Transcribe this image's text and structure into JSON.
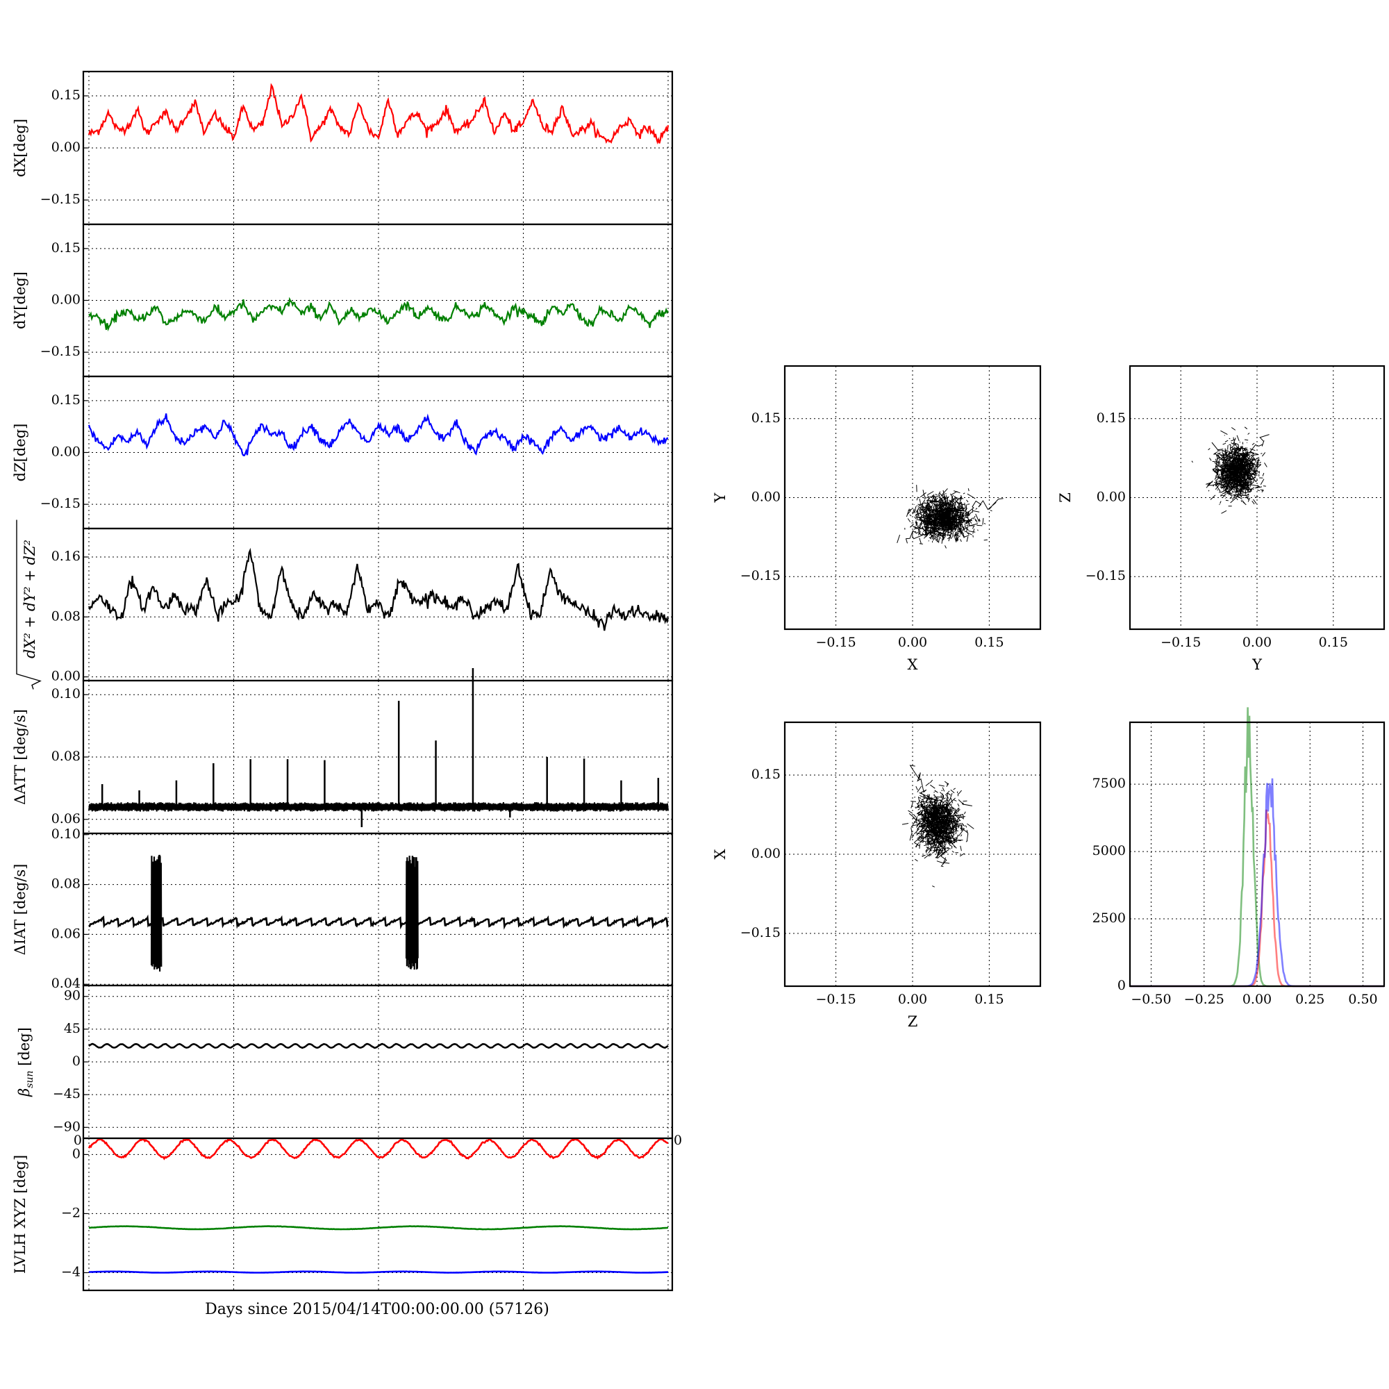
{
  "figure": {
    "x_axis_label": "Days since 2015/04/14T00:00:00.00 (57126)"
  },
  "chart_data": [
    {
      "id": "dx",
      "type": "line",
      "ylabel": "dX[deg]",
      "ylim": [
        -0.22,
        0.22
      ],
      "yticks": [
        -0.15,
        0.0,
        0.15
      ],
      "ytick_labels": [
        "−0.15",
        "0.00",
        "0.15"
      ],
      "grid": true,
      "series": [
        {
          "color": "#ff0000",
          "values": [
            0.04,
            0.05,
            0.1,
            0.05,
            0.06,
            0.11,
            0.04,
            0.08,
            0.1,
            0.05,
            0.09,
            0.13,
            0.04,
            0.1,
            0.06,
            0.03,
            0.12,
            0.05,
            0.07,
            0.18,
            0.06,
            0.09,
            0.15,
            0.03,
            0.06,
            0.11,
            0.06,
            0.04,
            0.13,
            0.05,
            0.03,
            0.14,
            0.04,
            0.08,
            0.1,
            0.05,
            0.07,
            0.11,
            0.05,
            0.06,
            0.09,
            0.14,
            0.04,
            0.1,
            0.05,
            0.07,
            0.14,
            0.06,
            0.05,
            0.12,
            0.04,
            0.05,
            0.07,
            0.03,
            0.02,
            0.06,
            0.08,
            0.04,
            0.06,
            0.02,
            0.06
          ]
        }
      ]
    },
    {
      "id": "dy",
      "type": "line",
      "ylabel": "dY[deg]",
      "ylim": [
        -0.22,
        0.22
      ],
      "yticks": [
        -0.15,
        0.0,
        0.15
      ],
      "ytick_labels": [
        "−0.15",
        "0.00",
        "0.15"
      ],
      "grid": true,
      "series": [
        {
          "color": "#008000",
          "values": [
            -0.04,
            -0.05,
            -0.08,
            -0.04,
            -0.03,
            -0.06,
            -0.04,
            -0.02,
            -0.07,
            -0.05,
            -0.03,
            -0.04,
            -0.06,
            -0.02,
            -0.05,
            -0.03,
            -0.01,
            -0.06,
            -0.03,
            -0.02,
            -0.03,
            0.0,
            -0.04,
            -0.02,
            -0.05,
            -0.01,
            -0.07,
            -0.03,
            -0.05,
            -0.02,
            -0.04,
            -0.06,
            -0.03,
            -0.01,
            -0.05,
            -0.02,
            -0.04,
            -0.06,
            -0.02,
            -0.03,
            -0.05,
            -0.01,
            -0.04,
            -0.06,
            -0.02,
            -0.03,
            -0.05,
            -0.07,
            -0.02,
            -0.04,
            -0.01,
            -0.05,
            -0.07,
            -0.03,
            -0.04,
            -0.06,
            -0.02,
            -0.04,
            -0.07,
            -0.04,
            -0.03
          ]
        }
      ]
    },
    {
      "id": "dz",
      "type": "line",
      "ylabel": "dZ[deg]",
      "ylim": [
        -0.22,
        0.22
      ],
      "yticks": [
        -0.15,
        0.0,
        0.15
      ],
      "ytick_labels": [
        "−0.15",
        "0.00",
        "0.15"
      ],
      "grid": true,
      "series": [
        {
          "color": "#0000ff",
          "values": [
            0.07,
            0.03,
            0.01,
            0.05,
            0.03,
            0.06,
            0.02,
            0.08,
            0.1,
            0.04,
            0.03,
            0.06,
            0.08,
            0.04,
            0.09,
            0.05,
            -0.01,
            0.04,
            0.08,
            0.05,
            0.06,
            0.01,
            0.05,
            0.08,
            0.04,
            0.02,
            0.06,
            0.09,
            0.05,
            0.03,
            0.08,
            0.05,
            0.07,
            0.03,
            0.06,
            0.1,
            0.05,
            0.04,
            0.09,
            0.03,
            0.0,
            0.05,
            0.06,
            0.04,
            0.01,
            0.05,
            0.03,
            0.0,
            0.05,
            0.07,
            0.03,
            0.06,
            0.08,
            0.04,
            0.05,
            0.07,
            0.04,
            0.06,
            0.05,
            0.03,
            0.04
          ]
        }
      ]
    },
    {
      "id": "dr",
      "type": "line",
      "ylabel_math": true,
      "ylim": [
        -0.005,
        0.198
      ],
      "yticks": [
        0.0,
        0.08,
        0.16
      ],
      "ytick_labels": [
        "0.00",
        "0.08",
        "0.16"
      ],
      "grid": true,
      "series": [
        {
          "color": "#000000",
          "values": [
            0.09,
            0.11,
            0.09,
            0.08,
            0.13,
            0.09,
            0.12,
            0.09,
            0.11,
            0.09,
            0.09,
            0.13,
            0.08,
            0.1,
            0.1,
            0.17,
            0.09,
            0.08,
            0.15,
            0.09,
            0.08,
            0.11,
            0.09,
            0.1,
            0.08,
            0.15,
            0.09,
            0.1,
            0.08,
            0.13,
            0.11,
            0.1,
            0.11,
            0.1,
            0.09,
            0.11,
            0.08,
            0.09,
            0.1,
            0.09,
            0.15,
            0.09,
            0.08,
            0.14,
            0.11,
            0.1,
            0.09,
            0.08,
            0.07,
            0.09,
            0.08,
            0.09,
            0.08,
            0.08,
            0.08
          ]
        }
      ]
    },
    {
      "id": "datt",
      "type": "line",
      "ylabel": "ΔATT [deg/s]",
      "ylim": [
        0.0555,
        0.1045
      ],
      "yticks": [
        0.06,
        0.08,
        0.1
      ],
      "ytick_labels": [
        "0.06",
        "0.08",
        "0.10"
      ],
      "grid": true,
      "baseline": 0.064,
      "band": 0.0015,
      "spikes": [
        {
          "x": 0.023,
          "v": 0.0713
        },
        {
          "x": 0.087,
          "v": 0.0693
        },
        {
          "x": 0.151,
          "v": 0.0725
        },
        {
          "x": 0.215,
          "v": 0.078
        },
        {
          "x": 0.279,
          "v": 0.0793
        },
        {
          "x": 0.343,
          "v": 0.0793
        },
        {
          "x": 0.407,
          "v": 0.079
        },
        {
          "x": 0.471,
          "v": 0.0575
        },
        {
          "x": 0.535,
          "v": 0.098
        },
        {
          "x": 0.599,
          "v": 0.0853
        },
        {
          "x": 0.663,
          "v": 0.1085
        },
        {
          "x": 0.727,
          "v": 0.0606
        },
        {
          "x": 0.791,
          "v": 0.08
        },
        {
          "x": 0.855,
          "v": 0.0795
        },
        {
          "x": 0.919,
          "v": 0.0725
        },
        {
          "x": 0.983,
          "v": 0.0733
        }
      ]
    },
    {
      "id": "diat",
      "type": "line",
      "ylabel": "ΔIAT [deg/s]",
      "ylim": [
        0.0395,
        0.1005
      ],
      "yticks": [
        0.04,
        0.06,
        0.08,
        0.1
      ],
      "ytick_labels": [
        "0.04",
        "0.06",
        "0.08",
        "0.10"
      ],
      "grid": true,
      "sawtooth": {
        "low": 0.0635,
        "high": 0.0665,
        "period": 0.0256
      },
      "bursts": [
        {
          "x0": 0.108,
          "x1": 0.125,
          "low": 0.045,
          "high": 0.092
        },
        {
          "x0": 0.548,
          "x1": 0.568,
          "low": 0.045,
          "high": 0.092
        }
      ]
    },
    {
      "id": "beta",
      "type": "line",
      "ylabel_math": true,
      "ylim": [
        -105,
        105
      ],
      "yticks": [
        -90,
        -45,
        0,
        45,
        90
      ],
      "ytick_labels": [
        "−90",
        "−45",
        "0",
        "45",
        "90"
      ],
      "grid": true,
      "series": [
        {
          "color": "#000000",
          "mean": 22,
          "amplitude": 2.5,
          "cycles": 40
        }
      ]
    },
    {
      "id": "lvlh",
      "type": "line",
      "ylabel": "LVLH XYZ [deg]",
      "ylim": [
        -4.6,
        0.55
      ],
      "yticks": [
        -4,
        -2,
        0
      ],
      "ytick_labels": [
        "−4",
        "−2",
        "0"
      ],
      "grid": true,
      "corner_labels": [
        "0",
        "0"
      ],
      "series": [
        {
          "color": "#ff0000",
          "mean": 0.2,
          "amplitude": 0.3,
          "cycles": 13.4
        },
        {
          "color": "#008000",
          "mean": -2.48,
          "amplitude": 0.05,
          "cycles": 4
        },
        {
          "color": "#0000ff",
          "mean": -3.98,
          "amplitude": 0.02,
          "cycles": 6
        }
      ]
    },
    {
      "id": "xy",
      "type": "scatter",
      "xlabel": "X",
      "ylabel": "Y",
      "xlim": [
        -0.25,
        0.25
      ],
      "ylim": [
        -0.25,
        0.25
      ],
      "ticks": [
        -0.15,
        0.0,
        0.15
      ],
      "tick_labels": [
        "−0.15",
        "0.00",
        "0.15"
      ],
      "grid": true,
      "cloud": {
        "cx": 0.06,
        "cy": -0.04,
        "sx": 0.025,
        "sy": 0.018,
        "tails": [
          [
            0.17,
            0.0
          ],
          [
            -0.02,
            -0.08
          ]
        ]
      }
    },
    {
      "id": "yz",
      "type": "scatter",
      "xlabel": "Y",
      "ylabel": "Z",
      "xlim": [
        -0.25,
        0.25
      ],
      "ylim": [
        -0.25,
        0.25
      ],
      "ticks": [
        -0.15,
        0.0,
        0.15
      ],
      "tick_labels": [
        "−0.15",
        "0.00",
        "0.15"
      ],
      "grid": true,
      "cloud": {
        "cx": -0.04,
        "cy": 0.05,
        "sx": 0.018,
        "sy": 0.022,
        "tails": [
          [
            -0.1,
            0.02
          ],
          [
            0.02,
            0.11
          ]
        ]
      }
    },
    {
      "id": "zx",
      "type": "scatter",
      "xlabel": "Z",
      "ylabel": "X",
      "xlim": [
        -0.25,
        0.25
      ],
      "ylim": [
        -0.25,
        0.25
      ],
      "ticks": [
        -0.15,
        0.0,
        0.15
      ],
      "tick_labels": [
        "−0.15",
        "0.00",
        "0.15"
      ],
      "grid": true,
      "cloud": {
        "cx": 0.05,
        "cy": 0.06,
        "sx": 0.02,
        "sy": 0.025,
        "tails": [
          [
            0.0,
            0.17
          ],
          [
            0.06,
            -0.02
          ]
        ]
      }
    },
    {
      "id": "hist",
      "type": "histogram",
      "xlim": [
        -0.6,
        0.6
      ],
      "ylim": [
        0,
        9800
      ],
      "xticks": [
        -0.5,
        -0.25,
        0.0,
        0.25,
        0.5
      ],
      "xtick_labels": [
        "−0.50",
        "−0.25",
        "0.00",
        "0.25",
        "0.50"
      ],
      "yticks": [
        0,
        2500,
        5000,
        7500
      ],
      "ytick_labels": [
        "0",
        "2500",
        "5000",
        "7500"
      ],
      "grid": true,
      "series": [
        {
          "color": "#008000",
          "center": -0.04,
          "width": 0.022,
          "peak": 9500
        },
        {
          "color": "#ff0000",
          "center": 0.05,
          "width": 0.022,
          "peak": 6400
        },
        {
          "color": "#0000ff",
          "center": 0.06,
          "width": 0.028,
          "peak": 7600
        }
      ]
    }
  ]
}
